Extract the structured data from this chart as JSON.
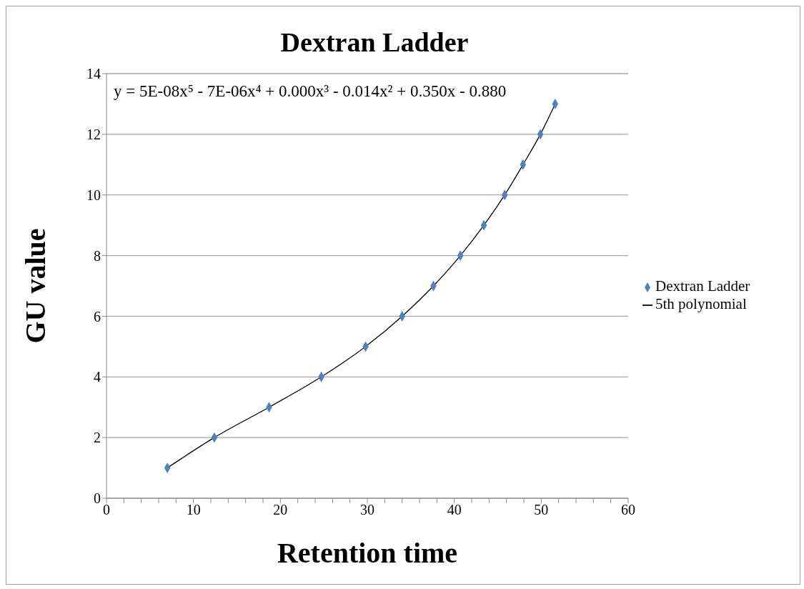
{
  "chart_data": {
    "type": "scatter",
    "title": "Dextran Ladder",
    "xlabel": "Retention time",
    "ylabel": "GU value",
    "annotations": [
      "y = 5E-08x⁵ - 7E-06x⁴ + 0.000x³ - 0.014x² + 0.350x - 0.880"
    ],
    "series": [
      {
        "name": "Dextran Ladder",
        "color": "#4f81bd",
        "marker": "diamond",
        "x": [
          7.0,
          12.4,
          18.7,
          24.7,
          29.8,
          34.0,
          37.6,
          40.7,
          43.4,
          45.8,
          47.9,
          49.9,
          51.6
        ],
        "values": [
          1,
          2,
          3,
          4,
          5,
          6,
          7,
          8,
          9,
          10,
          11,
          12,
          13
        ]
      },
      {
        "name": "5th polynomial",
        "type": "line",
        "color": "#000000",
        "line_style": "solid",
        "x": [
          7.0,
          12.4,
          18.7,
          24.7,
          29.8,
          34.0,
          37.6,
          40.7,
          43.4,
          45.8,
          47.9,
          49.9,
          51.6
        ],
        "values": [
          1,
          2,
          3,
          4,
          5,
          6,
          7,
          8,
          9,
          10,
          11,
          12,
          13
        ]
      }
    ],
    "xlim": [
      0,
      60
    ],
    "xticks": [
      0,
      {
        "value": 2,
        "label": null
      },
      {
        "value": 4,
        "label": null
      },
      {
        "value": 6,
        "label": null
      },
      {
        "value": 8,
        "label": null
      },
      10,
      {
        "value": 12,
        "label": null
      },
      {
        "value": 14,
        "label": null
      },
      {
        "value": 16,
        "label": null
      },
      {
        "value": 18,
        "label": null
      },
      20,
      {
        "value": 22,
        "label": null
      },
      {
        "value": 24,
        "label": null
      },
      {
        "value": 26,
        "label": null
      },
      {
        "value": 28,
        "label": null
      },
      30,
      {
        "value": 32,
        "label": null
      },
      {
        "value": 34,
        "label": null
      },
      {
        "value": 36,
        "label": null
      },
      {
        "value": 38,
        "label": null
      },
      40,
      {
        "value": 42,
        "label": null
      },
      {
        "value": 44,
        "label": null
      },
      {
        "value": 46,
        "label": null
      },
      {
        "value": 48,
        "label": null
      },
      50,
      {
        "value": 52,
        "label": null
      },
      {
        "value": 54,
        "label": null
      },
      {
        "value": 56,
        "label": null
      },
      {
        "value": 58,
        "label": null
      },
      60
    ],
    "ylim": [
      0,
      14
    ],
    "yticks": [
      0,
      2,
      4,
      6,
      8,
      10,
      12,
      14
    ],
    "grid": "y",
    "legend": "right"
  }
}
